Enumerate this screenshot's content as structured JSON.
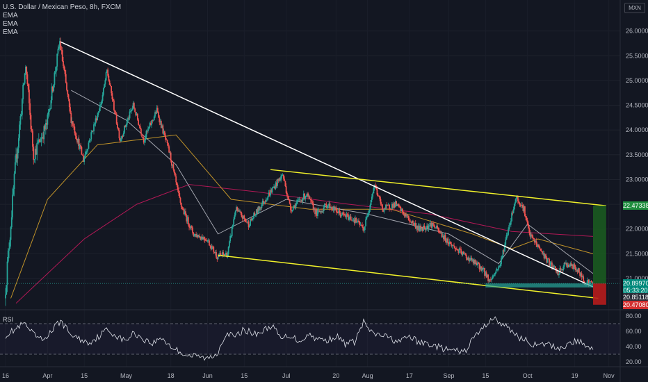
{
  "header": {
    "symbol_title": "U.S. Dollar / Mexican Peso, 8h, FXCM",
    "indicators": [
      "EMA",
      "EMA",
      "EMA"
    ],
    "currency_badge": "MXN",
    "rsi_label": "RSI"
  },
  "colors": {
    "background": "#131722",
    "up_candle": "#26a69a",
    "down_candle": "#ef5350",
    "trendline": "#ffffff",
    "channel": "#f0f02a",
    "ema_fast": "#b2b5be",
    "ema_mid": "#d4a12a",
    "ema_slow": "#c2185b",
    "target_zone": "#1b5e20",
    "stop_zone": "#b71c1c",
    "tag_green": "#1e8e3e",
    "tag_teal": "#00897b",
    "tag_red": "#d32f2f"
  },
  "chart_data": [
    {
      "type": "candlestick",
      "title": "U.S. Dollar / Mexican Peso, 8h, FXCM",
      "x_ticks": [
        "16",
        "Apr",
        "15",
        "May",
        "18",
        "Jun",
        "15",
        "Jul",
        "20",
        "Aug",
        "17",
        "Sep",
        "15",
        "Oct",
        "19",
        "Nov"
      ],
      "y_ticks": [
        "26.00000",
        "25.50000",
        "25.00000",
        "24.50000",
        "24.00000",
        "23.50000",
        "23.00000",
        "22.50000",
        "22.00000",
        "21.50000",
        "21.00000"
      ],
      "ylim": [
        20.5,
        26.25
      ],
      "price_tags": [
        {
          "label": "22.47338",
          "value": 22.47338,
          "color": "#1e8e3e"
        },
        {
          "label": "20.89970",
          "value": 20.8997,
          "color": "#00897b"
        },
        {
          "label": "05:33:20",
          "value": 20.765,
          "color": "#00897b"
        },
        {
          "label": "20.85118",
          "value": 20.62,
          "color": "#2a2e39"
        },
        {
          "label": "20.47080",
          "value": 20.4708,
          "color": "#d32f2f"
        }
      ],
      "price_path": [
        {
          "date": "Mar 16",
          "value": 20.6
        },
        {
          "date": "Mar 20",
          "value": 23.2
        },
        {
          "date": "Mar 24",
          "value": 25.3
        },
        {
          "date": "Mar 27",
          "value": 23.5
        },
        {
          "date": "Apr 1",
          "value": 24.1
        },
        {
          "date": "Apr 6",
          "value": 25.78
        },
        {
          "date": "Apr 10",
          "value": 24.3
        },
        {
          "date": "Apr 15",
          "value": 23.4
        },
        {
          "date": "Apr 22",
          "value": 24.6
        },
        {
          "date": "Apr 24",
          "value": 25.2
        },
        {
          "date": "Apr 29",
          "value": 23.8
        },
        {
          "date": "May 4",
          "value": 24.5
        },
        {
          "date": "May 8",
          "value": 23.8
        },
        {
          "date": "May 13",
          "value": 24.4
        },
        {
          "date": "May 18",
          "value": 23.5
        },
        {
          "date": "May 22",
          "value": 22.5
        },
        {
          "date": "May 27",
          "value": 21.9
        },
        {
          "date": "Jun 1",
          "value": 21.8
        },
        {
          "date": "Jun 5",
          "value": 21.45
        },
        {
          "date": "Jun 9",
          "value": 21.5
        },
        {
          "date": "Jun 12",
          "value": 22.4
        },
        {
          "date": "Jun 17",
          "value": 22.1
        },
        {
          "date": "Jun 22",
          "value": 22.5
        },
        {
          "date": "Jun 26",
          "value": 22.8
        },
        {
          "date": "Jun 30",
          "value": 23.1
        },
        {
          "date": "Jul 3",
          "value": 22.4
        },
        {
          "date": "Jul 9",
          "value": 22.7
        },
        {
          "date": "Jul 13",
          "value": 22.3
        },
        {
          "date": "Jul 17",
          "value": 22.5
        },
        {
          "date": "Jul 22",
          "value": 22.3
        },
        {
          "date": "Jul 27",
          "value": 22.2
        },
        {
          "date": "Jul 31",
          "value": 22.0
        },
        {
          "date": "Aug 4",
          "value": 22.9
        },
        {
          "date": "Aug 7",
          "value": 22.4
        },
        {
          "date": "Aug 12",
          "value": 22.5
        },
        {
          "date": "Aug 17",
          "value": 22.2
        },
        {
          "date": "Aug 21",
          "value": 22.0
        },
        {
          "date": "Aug 26",
          "value": 22.1
        },
        {
          "date": "Aug 31",
          "value": 21.8
        },
        {
          "date": "Sep 4",
          "value": 21.6
        },
        {
          "date": "Sep 9",
          "value": 21.4
        },
        {
          "date": "Sep 14",
          "value": 21.2
        },
        {
          "date": "Sep 17",
          "value": 20.95
        },
        {
          "date": "Sep 21",
          "value": 21.3
        },
        {
          "date": "Sep 24",
          "value": 22.0
        },
        {
          "date": "Sep 27",
          "value": 22.65
        },
        {
          "date": "Sep 30",
          "value": 22.4
        },
        {
          "date": "Oct 2",
          "value": 21.9
        },
        {
          "date": "Oct 6",
          "value": 21.6
        },
        {
          "date": "Oct 9",
          "value": 21.35
        },
        {
          "date": "Oct 13",
          "value": 21.1
        },
        {
          "date": "Oct 16",
          "value": 21.3
        },
        {
          "date": "Oct 20",
          "value": 21.2
        },
        {
          "date": "Oct 23",
          "value": 20.95
        },
        {
          "date": "Oct 26",
          "value": 20.9
        }
      ],
      "ema_fast": [
        {
          "date": "Apr 10",
          "value": 24.8
        },
        {
          "date": "May 1",
          "value": 24.2
        },
        {
          "date": "May 20",
          "value": 23.3
        },
        {
          "date": "Jun 5",
          "value": 21.9
        },
        {
          "date": "Jul 1",
          "value": 22.6
        },
        {
          "date": "Aug 1",
          "value": 22.3
        },
        {
          "date": "Sep 1",
          "value": 21.9
        },
        {
          "date": "Sep 20",
          "value": 21.3
        },
        {
          "date": "Oct 1",
          "value": 22.1
        },
        {
          "date": "Oct 26",
          "value": 21.1
        }
      ],
      "ema_mid": [
        {
          "date": "Mar 18",
          "value": 20.6
        },
        {
          "date": "Apr 1",
          "value": 22.6
        },
        {
          "date": "Apr 20",
          "value": 23.7
        },
        {
          "date": "May 20",
          "value": 23.9
        },
        {
          "date": "Jun 10",
          "value": 22.6
        },
        {
          "date": "Jul 10",
          "value": 22.4
        },
        {
          "date": "Aug 10",
          "value": 22.4
        },
        {
          "date": "Sep 10",
          "value": 21.9
        },
        {
          "date": "Sep 25",
          "value": 21.6
        },
        {
          "date": "Oct 5",
          "value": 21.8
        },
        {
          "date": "Oct 26",
          "value": 21.5
        }
      ],
      "ema_slow": [
        {
          "date": "Mar 20",
          "value": 20.5
        },
        {
          "date": "Apr 15",
          "value": 21.8
        },
        {
          "date": "May 5",
          "value": 22.5
        },
        {
          "date": "May 25",
          "value": 22.9
        },
        {
          "date": "Jun 20",
          "value": 22.75
        },
        {
          "date": "Jul 25",
          "value": 22.5
        },
        {
          "date": "Aug 25",
          "value": 22.3
        },
        {
          "date": "Sep 25",
          "value": 21.95
        },
        {
          "date": "Oct 26",
          "value": 21.85
        }
      ],
      "drawings": {
        "descending_trendline": [
          {
            "date": "Apr 6",
            "value": 25.78
          },
          {
            "date": "Oct 26",
            "value": 20.83
          }
        ],
        "channel_upper": [
          {
            "date": "Jun 25",
            "value": 23.2
          },
          {
            "date": "Oct 31",
            "value": 22.47
          }
        ],
        "channel_lower": [
          {
            "date": "Jun 5",
            "value": 21.47
          },
          {
            "date": "Oct 28",
            "value": 20.6
          }
        ],
        "support_box": {
          "from": "Sep 15",
          "to": "Oct 26",
          "low": 20.82,
          "high": 20.9
        },
        "target_zone": {
          "from": "Oct 26",
          "to": "Oct 31",
          "low": 20.9,
          "high": 22.47338
        },
        "stop_zone": {
          "from": "Oct 26",
          "to": "Oct 31",
          "low": 20.47,
          "high": 20.9
        }
      }
    },
    {
      "type": "line",
      "title": "RSI",
      "y_ticks": [
        "80.00",
        "60.00",
        "40.00",
        "20.00"
      ],
      "ylim": [
        15,
        85
      ],
      "bands": [
        30,
        70
      ],
      "values": [
        55,
        62,
        70,
        56,
        48,
        60,
        74,
        57,
        50,
        45,
        52,
        62,
        55,
        47,
        58,
        50,
        44,
        52,
        40,
        33,
        28,
        27,
        24,
        30,
        58,
        52,
        63,
        56,
        60,
        68,
        50,
        55,
        47,
        56,
        50,
        48,
        54,
        44,
        46,
        72,
        56,
        55,
        50,
        46,
        54,
        45,
        44,
        40,
        36,
        34,
        33,
        52,
        64,
        78,
        70,
        62,
        52,
        46,
        40,
        44,
        38,
        41,
        47,
        44,
        36
      ]
    }
  ]
}
